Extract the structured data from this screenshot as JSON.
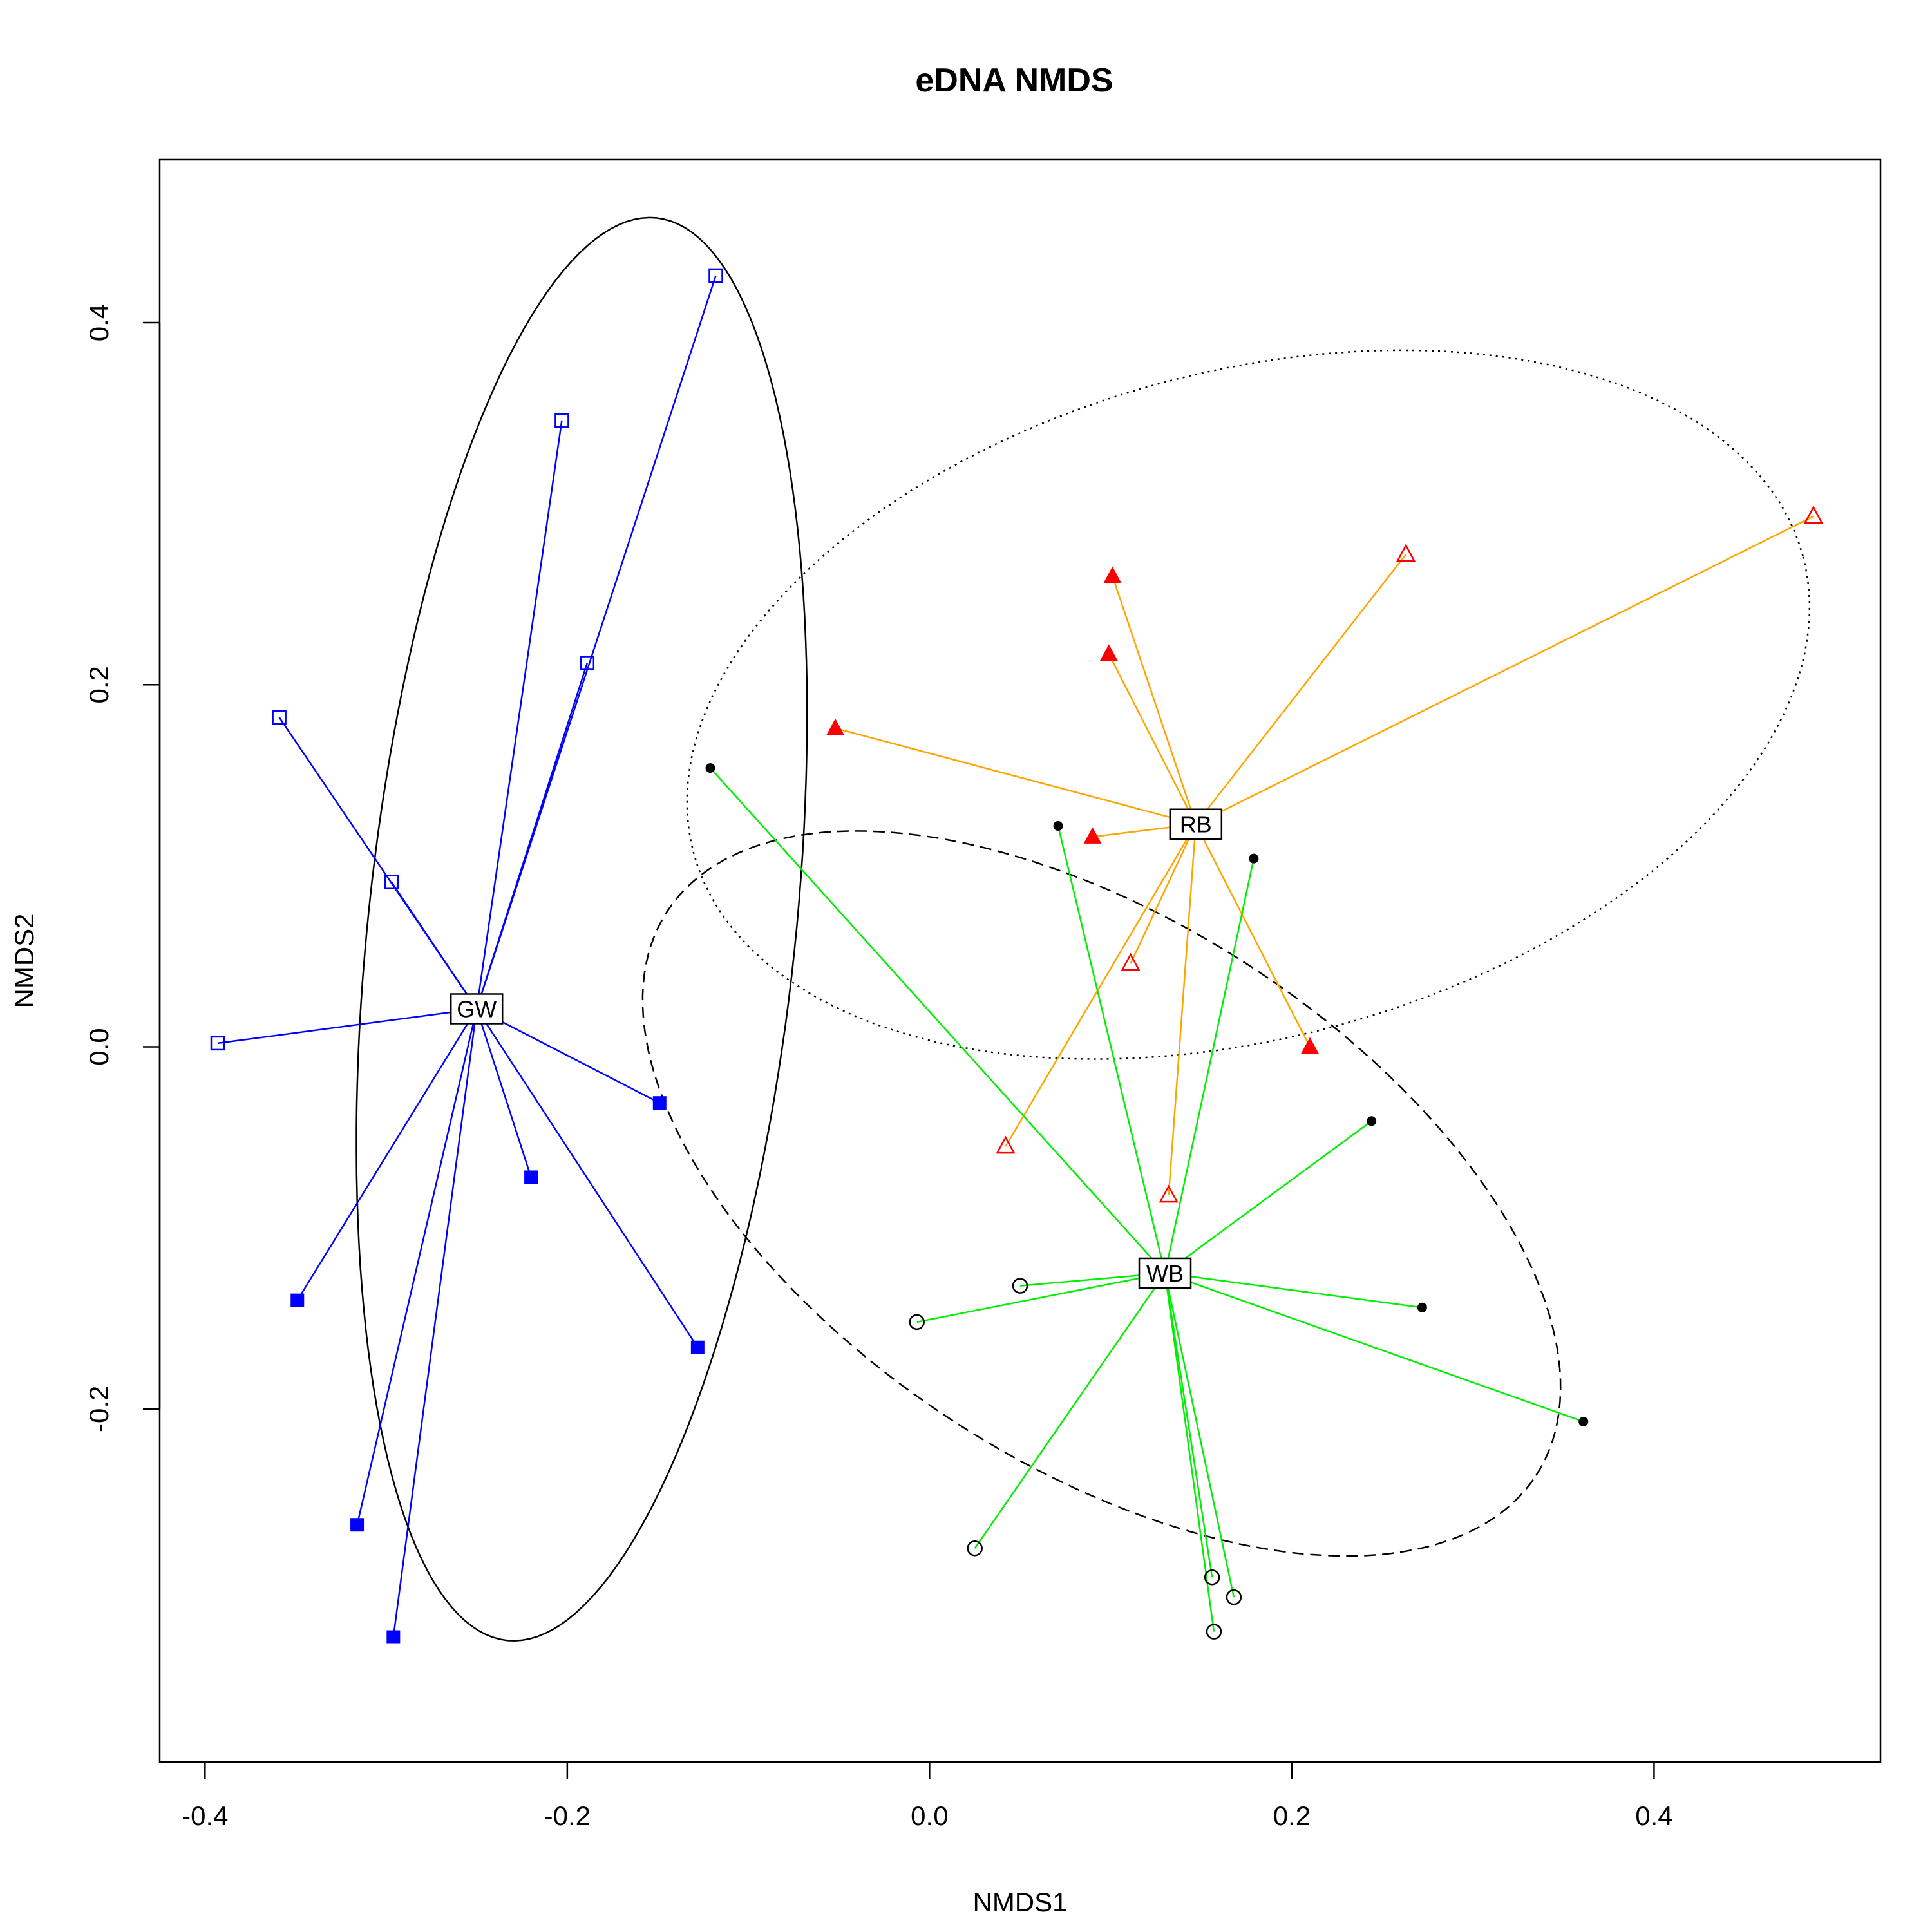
{
  "chart_data": {
    "type": "scatter",
    "title": "eDNA NMDS",
    "xlabel": "NMDS1",
    "ylabel": "NMDS2",
    "xlim": [
      -0.425,
      0.525
    ],
    "ylim": [
      -0.395,
      0.49
    ],
    "x_ticks": [
      -0.4,
      -0.2,
      0.0,
      0.2,
      0.4
    ],
    "x_tick_labels": [
      "-0.4",
      "-0.2",
      "0.0",
      "0.2",
      "0.4"
    ],
    "y_ticks": [
      -0.2,
      0.0,
      0.2,
      0.4
    ],
    "y_tick_labels": [
      "-0.2",
      "0.0",
      "0.2",
      "0.4"
    ],
    "grid": false,
    "legend": "none",
    "groups": [
      {
        "label": "GW",
        "centroid": [
          -0.25,
          0.021
        ],
        "spider_color": "#0000ff",
        "ellipse_style": "solid",
        "points": [
          {
            "x": -0.118,
            "y": 0.426,
            "marker": "open-square",
            "color": "#0000ff"
          },
          {
            "x": -0.203,
            "y": 0.346,
            "marker": "open-square",
            "color": "#0000ff"
          },
          {
            "x": -0.189,
            "y": 0.212,
            "marker": "open-square",
            "color": "#0000ff"
          },
          {
            "x": -0.359,
            "y": 0.182,
            "marker": "open-square",
            "color": "#0000ff"
          },
          {
            "x": -0.297,
            "y": 0.091,
            "marker": "open-square",
            "color": "#0000ff"
          },
          {
            "x": -0.393,
            "y": 0.002,
            "marker": "open-square",
            "color": "#0000ff"
          },
          {
            "x": -0.149,
            "y": -0.031,
            "marker": "filled-square",
            "color": "#0000ff"
          },
          {
            "x": -0.22,
            "y": -0.072,
            "marker": "filled-square",
            "color": "#0000ff"
          },
          {
            "x": -0.349,
            "y": -0.14,
            "marker": "filled-square",
            "color": "#0000ff"
          },
          {
            "x": -0.128,
            "y": -0.166,
            "marker": "filled-square",
            "color": "#0000ff"
          },
          {
            "x": -0.316,
            "y": -0.264,
            "marker": "filled-square",
            "color": "#0000ff"
          },
          {
            "x": -0.296,
            "y": -0.326,
            "marker": "filled-square",
            "color": "#0000ff"
          }
        ]
      },
      {
        "label": "RB",
        "centroid": [
          0.147,
          0.123
        ],
        "spider_color": "#ffa500",
        "ellipse_style": "dotted",
        "points": [
          {
            "x": 0.488,
            "y": 0.293,
            "marker": "open-triangle",
            "color": "#ff0000"
          },
          {
            "x": 0.263,
            "y": 0.272,
            "marker": "open-triangle",
            "color": "#ff0000"
          },
          {
            "x": 0.101,
            "y": 0.26,
            "marker": "filled-triangle",
            "color": "#ff0000"
          },
          {
            "x": 0.099,
            "y": 0.217,
            "marker": "filled-triangle",
            "color": "#ff0000"
          },
          {
            "x": -0.052,
            "y": 0.176,
            "marker": "filled-triangle",
            "color": "#ff0000"
          },
          {
            "x": 0.09,
            "y": 0.116,
            "marker": "filled-triangle",
            "color": "#ff0000"
          },
          {
            "x": 0.111,
            "y": 0.046,
            "marker": "open-triangle",
            "color": "#ff0000"
          },
          {
            "x": 0.21,
            "y": 0.0,
            "marker": "filled-triangle",
            "color": "#ff0000"
          },
          {
            "x": 0.042,
            "y": -0.055,
            "marker": "open-triangle",
            "color": "#ff0000"
          },
          {
            "x": 0.132,
            "y": -0.082,
            "marker": "open-triangle",
            "color": "#ff0000"
          }
        ]
      },
      {
        "label": "WB",
        "centroid": [
          0.13,
          -0.125
        ],
        "spider_color": "#00ee00",
        "ellipse_style": "dashed",
        "points": [
          {
            "x": -0.121,
            "y": 0.154,
            "marker": "dot",
            "color": "#000000"
          },
          {
            "x": 0.071,
            "y": 0.122,
            "marker": "dot",
            "color": "#000000"
          },
          {
            "x": 0.179,
            "y": 0.104,
            "marker": "dot",
            "color": "#000000"
          },
          {
            "x": 0.244,
            "y": -0.041,
            "marker": "dot",
            "color": "#000000"
          },
          {
            "x": 0.272,
            "y": -0.144,
            "marker": "dot",
            "color": "#000000"
          },
          {
            "x": 0.361,
            "y": -0.207,
            "marker": "dot",
            "color": "#000000"
          },
          {
            "x": 0.05,
            "y": -0.132,
            "marker": "open-circle",
            "color": "#000000"
          },
          {
            "x": -0.007,
            "y": -0.152,
            "marker": "open-circle",
            "color": "#000000"
          },
          {
            "x": 0.025,
            "y": -0.277,
            "marker": "open-circle",
            "color": "#000000"
          },
          {
            "x": 0.156,
            "y": -0.293,
            "marker": "open-circle",
            "color": "#000000"
          },
          {
            "x": 0.168,
            "y": -0.304,
            "marker": "open-circle",
            "color": "#000000"
          },
          {
            "x": 0.157,
            "y": -0.323,
            "marker": "open-circle",
            "color": "#000000"
          }
        ]
      }
    ],
    "ellipses": [
      {
        "group": "GW",
        "center": [
          -0.192,
          0.065
        ],
        "semi_axes": [
          0.118,
          0.395
        ],
        "rotation_deg": -6,
        "color": "#000000",
        "style": "solid"
      },
      {
        "group": "RB",
        "center": [
          0.176,
          0.189
        ],
        "semi_axes": [
          0.317,
          0.184
        ],
        "rotation_deg": 15,
        "color": "#000000",
        "style": "dotted"
      },
      {
        "group": "WB",
        "center": [
          0.095,
          -0.081
        ],
        "semi_axes": [
          0.286,
          0.15
        ],
        "rotation_deg": -33,
        "color": "#000000",
        "style": "dashed"
      }
    ]
  }
}
